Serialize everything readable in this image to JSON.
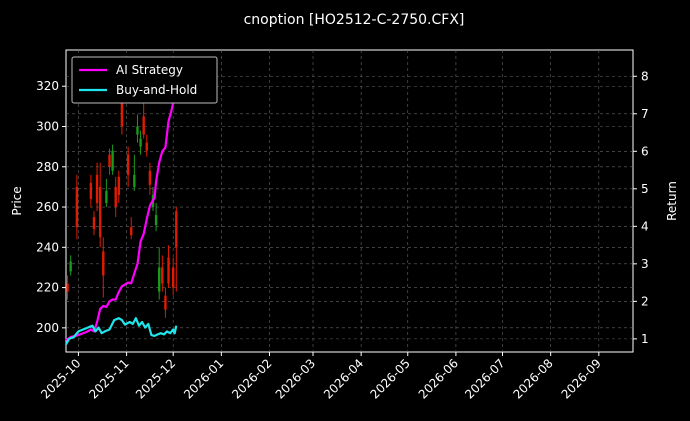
{
  "chart_data": {
    "type": "line",
    "title": "cnoption [HO2512-C-2750.CFX]",
    "xlabel": "",
    "ylabel": "Price",
    "y2label": "Return",
    "xlim": [
      "2025-09-23",
      "2026-09-23"
    ],
    "ylim": [
      188,
      338
    ],
    "y2lim": [
      0.65,
      8.7
    ],
    "grid": true,
    "legend_position": "top-left",
    "x_ticks": [
      "2025-10",
      "2025-11",
      "2025-12",
      "2026-01",
      "2026-02",
      "2026-03",
      "2026-04",
      "2026-05",
      "2026-06",
      "2026-07",
      "2026-08",
      "2026-09"
    ],
    "x_tick_dates": [
      "2025-10-01",
      "2025-11-01",
      "2025-12-01",
      "2026-01-01",
      "2026-02-01",
      "2026-03-01",
      "2026-04-01",
      "2026-05-01",
      "2026-06-01",
      "2026-07-01",
      "2026-08-01",
      "2026-09-01"
    ],
    "y_ticks": [
      200,
      220,
      240,
      260,
      280,
      300,
      320
    ],
    "y2_ticks": [
      1,
      2,
      3,
      4,
      5,
      6,
      7,
      8
    ],
    "candles": [
      {
        "date": "2025-09-24",
        "open": 222,
        "close": 218,
        "high": 226,
        "low": 214
      },
      {
        "date": "2025-09-26",
        "open": 228,
        "close": 233,
        "high": 236,
        "low": 226
      },
      {
        "date": "2025-09-30",
        "open": 270,
        "close": 250,
        "high": 276,
        "low": 244
      },
      {
        "date": "2025-10-09",
        "open": 272,
        "close": 264,
        "high": 276,
        "low": 260
      },
      {
        "date": "2025-10-11",
        "open": 255,
        "close": 249,
        "high": 258,
        "low": 246
      },
      {
        "date": "2025-10-13",
        "open": 276,
        "close": 262,
        "high": 282,
        "low": 258
      },
      {
        "date": "2025-10-15",
        "open": 270,
        "close": 245,
        "high": 282,
        "low": 240
      },
      {
        "date": "2025-10-17",
        "open": 238,
        "close": 226,
        "high": 245,
        "low": 215
      },
      {
        "date": "2025-10-19",
        "open": 262,
        "close": 268,
        "high": 274,
        "low": 260
      },
      {
        "date": "2025-10-21",
        "open": 286,
        "close": 280,
        "high": 289,
        "low": 276
      },
      {
        "date": "2025-10-23",
        "open": 278,
        "close": 288,
        "high": 291,
        "low": 276
      },
      {
        "date": "2025-10-25",
        "open": 270,
        "close": 260,
        "high": 275,
        "low": 255
      },
      {
        "date": "2025-10-27",
        "open": 275,
        "close": 266,
        "high": 278,
        "low": 262
      },
      {
        "date": "2025-10-29",
        "open": 315,
        "close": 300,
        "high": 316,
        "low": 296
      },
      {
        "date": "2025-11-02",
        "open": 286,
        "close": 276,
        "high": 290,
        "low": 270
      },
      {
        "date": "2025-11-04",
        "open": 250,
        "close": 246,
        "high": 255,
        "low": 244
      },
      {
        "date": "2025-11-06",
        "open": 270,
        "close": 276,
        "high": 286,
        "low": 268
      },
      {
        "date": "2025-11-08",
        "open": 296,
        "close": 300,
        "high": 306,
        "low": 292
      },
      {
        "date": "2025-11-10",
        "open": 290,
        "close": 294,
        "high": 298,
        "low": 286
      },
      {
        "date": "2025-11-12",
        "open": 305,
        "close": 296,
        "high": 316,
        "low": 294
      },
      {
        "date": "2025-11-14",
        "open": 292,
        "close": 288,
        "high": 296,
        "low": 285
      },
      {
        "date": "2025-11-16",
        "open": 278,
        "close": 271,
        "high": 282,
        "low": 266
      },
      {
        "date": "2025-11-18",
        "open": 260,
        "close": 266,
        "high": 270,
        "low": 258
      },
      {
        "date": "2025-11-20",
        "open": 251,
        "close": 256,
        "high": 262,
        "low": 248
      },
      {
        "date": "2025-11-22",
        "open": 218,
        "close": 230,
        "high": 240,
        "low": 214
      },
      {
        "date": "2025-11-24",
        "open": 230,
        "close": 222,
        "high": 236,
        "low": 218
      },
      {
        "date": "2025-11-26",
        "open": 216,
        "close": 209,
        "high": 220,
        "low": 205
      },
      {
        "date": "2025-11-28",
        "open": 235,
        "close": 222,
        "high": 241,
        "low": 220
      },
      {
        "date": "2025-12-01",
        "open": 230,
        "close": 220,
        "high": 235,
        "low": 216
      },
      {
        "date": "2025-12-03",
        "open": 258,
        "close": 240,
        "high": 260,
        "low": 218
      }
    ],
    "series": [
      {
        "name": "AI Strategy",
        "axis": "right",
        "color": "#ff00ff",
        "points": [
          [
            "2025-09-23",
            0.97
          ],
          [
            "2025-09-26",
            1.05
          ],
          [
            "2025-09-29",
            1.08
          ],
          [
            "2025-10-02",
            1.12
          ],
          [
            "2025-10-06",
            1.18
          ],
          [
            "2025-10-09",
            1.25
          ],
          [
            "2025-10-11",
            1.2
          ],
          [
            "2025-10-13",
            1.45
          ],
          [
            "2025-10-15",
            1.8
          ],
          [
            "2025-10-17",
            1.88
          ],
          [
            "2025-10-19",
            1.85
          ],
          [
            "2025-10-21",
            2.0
          ],
          [
            "2025-10-23",
            2.05
          ],
          [
            "2025-10-25",
            2.05
          ],
          [
            "2025-10-27",
            2.25
          ],
          [
            "2025-10-29",
            2.4
          ],
          [
            "2025-10-31",
            2.45
          ],
          [
            "2025-11-02",
            2.5
          ],
          [
            "2025-11-04",
            2.48
          ],
          [
            "2025-11-06",
            2.75
          ],
          [
            "2025-11-08",
            3.0
          ],
          [
            "2025-11-10",
            3.6
          ],
          [
            "2025-11-12",
            3.8
          ],
          [
            "2025-11-14",
            4.2
          ],
          [
            "2025-11-16",
            4.55
          ],
          [
            "2025-11-18",
            4.7
          ],
          [
            "2025-11-19",
            4.75
          ],
          [
            "2025-11-20",
            5.2
          ],
          [
            "2025-11-22",
            5.7
          ],
          [
            "2025-11-24",
            6.0
          ],
          [
            "2025-11-26",
            6.1
          ],
          [
            "2025-11-28",
            6.8
          ],
          [
            "2025-11-30",
            7.1
          ],
          [
            "2025-12-01",
            7.3
          ],
          [
            "2025-12-02",
            7.6
          ],
          [
            "2025-12-03",
            8.0
          ]
        ]
      },
      {
        "name": "Buy-and-Hold",
        "axis": "right",
        "color": "#1ee6ec",
        "points": [
          [
            "2025-09-23",
            0.85
          ],
          [
            "2025-09-25",
            1.0
          ],
          [
            "2025-09-28",
            1.05
          ],
          [
            "2025-10-01",
            1.2
          ],
          [
            "2025-10-04",
            1.25
          ],
          [
            "2025-10-07",
            1.3
          ],
          [
            "2025-10-10",
            1.35
          ],
          [
            "2025-10-12",
            1.2
          ],
          [
            "2025-10-14",
            1.3
          ],
          [
            "2025-10-16",
            1.15
          ],
          [
            "2025-10-18",
            1.2
          ],
          [
            "2025-10-21",
            1.25
          ],
          [
            "2025-10-24",
            1.5
          ],
          [
            "2025-10-27",
            1.55
          ],
          [
            "2025-10-29",
            1.5
          ],
          [
            "2025-10-31",
            1.38
          ],
          [
            "2025-11-03",
            1.45
          ],
          [
            "2025-11-05",
            1.4
          ],
          [
            "2025-11-07",
            1.55
          ],
          [
            "2025-11-09",
            1.35
          ],
          [
            "2025-11-11",
            1.45
          ],
          [
            "2025-11-13",
            1.3
          ],
          [
            "2025-11-15",
            1.4
          ],
          [
            "2025-11-17",
            1.1
          ],
          [
            "2025-11-19",
            1.08
          ],
          [
            "2025-11-21",
            1.12
          ],
          [
            "2025-11-23",
            1.15
          ],
          [
            "2025-11-25",
            1.12
          ],
          [
            "2025-11-27",
            1.2
          ],
          [
            "2025-11-29",
            1.15
          ],
          [
            "2025-12-01",
            1.25
          ],
          [
            "2025-12-02",
            1.15
          ],
          [
            "2025-12-03",
            1.35
          ]
        ]
      }
    ]
  }
}
